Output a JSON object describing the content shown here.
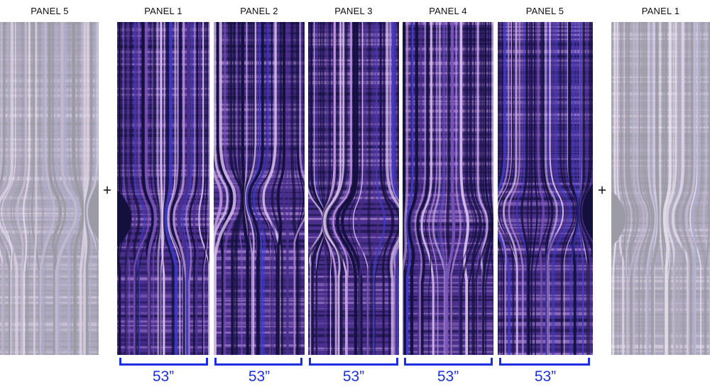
{
  "panels": [
    {
      "id": "left-preview",
      "label": "PANEL 5",
      "faded": true,
      "variant": 4
    },
    {
      "id": "panel-1",
      "label": "PANEL 1",
      "faded": false,
      "variant": 0
    },
    {
      "id": "panel-2",
      "label": "PANEL 2",
      "faded": false,
      "variant": 1
    },
    {
      "id": "panel-3",
      "label": "PANEL 3",
      "faded": false,
      "variant": 2
    },
    {
      "id": "panel-4",
      "label": "PANEL 4",
      "faded": false,
      "variant": 3
    },
    {
      "id": "panel-5",
      "label": "PANEL 5",
      "faded": false,
      "variant": 4
    },
    {
      "id": "right-preview",
      "label": "PANEL 1",
      "faded": true,
      "variant": 0
    }
  ],
  "repeat_marker": "+",
  "widths": [
    "53”",
    "53”",
    "53”",
    "53”",
    "53”"
  ],
  "colors": {
    "deep": "#14103d",
    "mid": "#4a2f8c",
    "violet": "#7a55b8",
    "light": "#b892d8",
    "pale": "#d8c0ea",
    "blue_highlight": "#3c3cc8",
    "dimension": "#1b2ee0"
  }
}
